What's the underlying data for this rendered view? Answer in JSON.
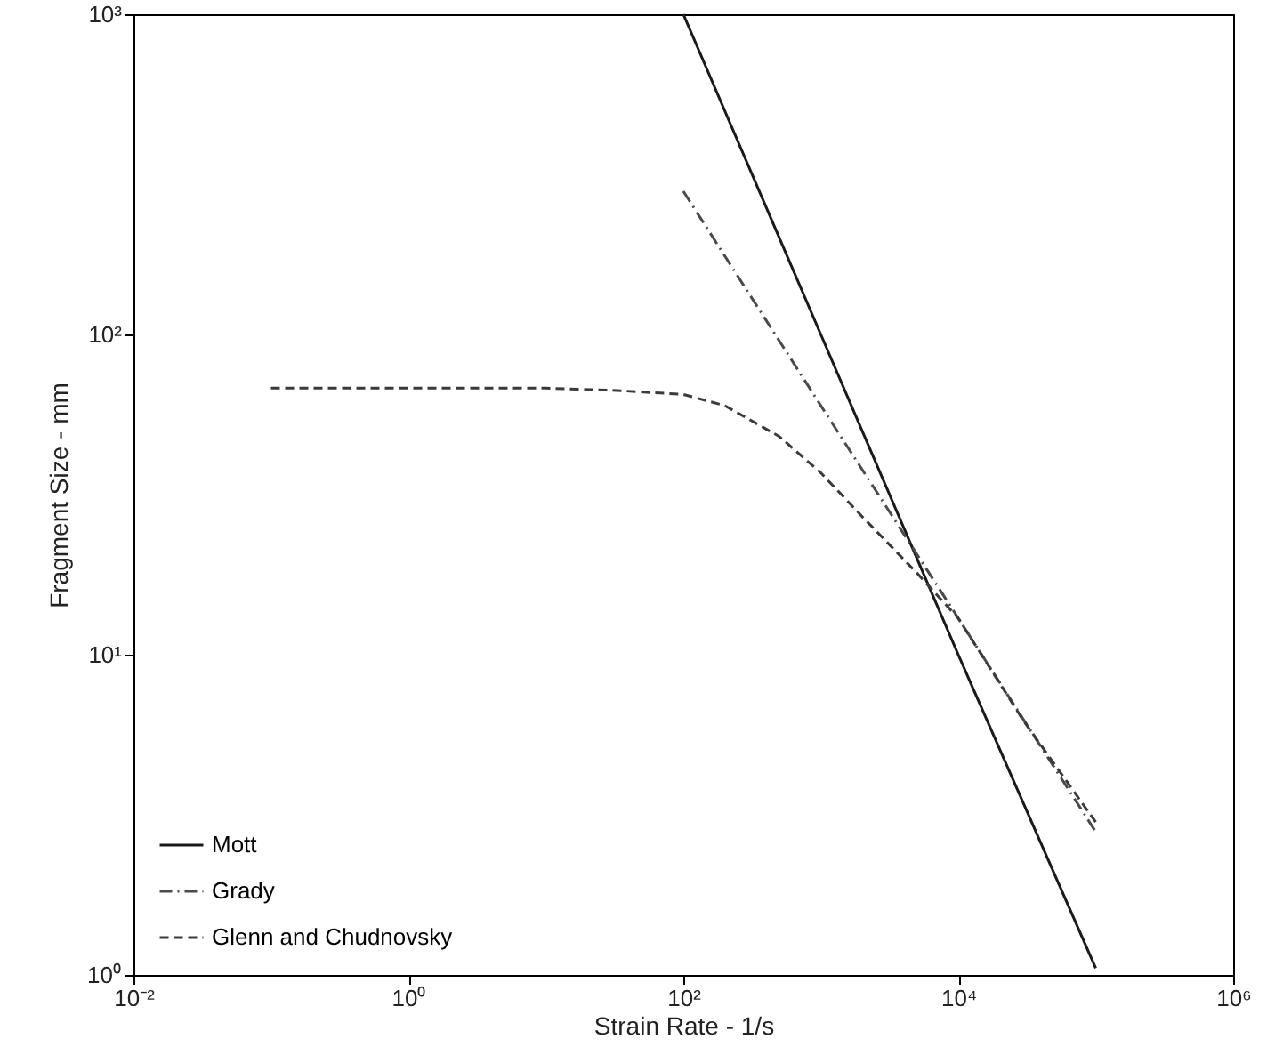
{
  "chart_data": {
    "type": "line",
    "xlabel": "Strain Rate - 1/s",
    "ylabel": "Fragment Size - mm",
    "log": "xy",
    "grid": false,
    "legend": "bottom left",
    "xlim": [
      0.01,
      1000000
    ],
    "ylim": [
      1,
      1000
    ],
    "xticks": [
      {
        "value": 0.01,
        "label": "10⁻²"
      },
      {
        "value": 1,
        "label": "10⁰"
      },
      {
        "value": 100,
        "label": "10²"
      },
      {
        "value": 10000,
        "label": "10⁴"
      },
      {
        "value": 1000000,
        "label": "10⁶"
      }
    ],
    "yticks": [
      {
        "value": 1,
        "label": "10⁰"
      },
      {
        "value": 10,
        "label": "10¹"
      },
      {
        "value": 100,
        "label": "10²"
      },
      {
        "value": 1000,
        "label": "10³"
      }
    ],
    "series": [
      {
        "name": "Mott",
        "color": "#1a1a1a",
        "line_style": "solid",
        "x": [
          100,
          1000,
          10000,
          100000
        ],
        "values": [
          1000,
          100,
          10,
          1.05
        ]
      },
      {
        "name": "Grady",
        "color": "#4a4a4a",
        "line_style": "dashdot",
        "x": [
          100,
          1000,
          10000,
          100000
        ],
        "values": [
          280,
          60,
          13,
          2.8
        ]
      },
      {
        "name": "Glenn and Chudnovsky",
        "color": "#3a3a3a",
        "line_style": "dashed",
        "x": [
          0.1,
          1,
          10,
          30,
          100,
          200,
          500,
          1000,
          2000,
          5000,
          10000,
          30000,
          100000
        ],
        "values": [
          68,
          68,
          68,
          67,
          65,
          60,
          48,
          37,
          27,
          18,
          13,
          6.2,
          3.0
        ]
      }
    ]
  }
}
